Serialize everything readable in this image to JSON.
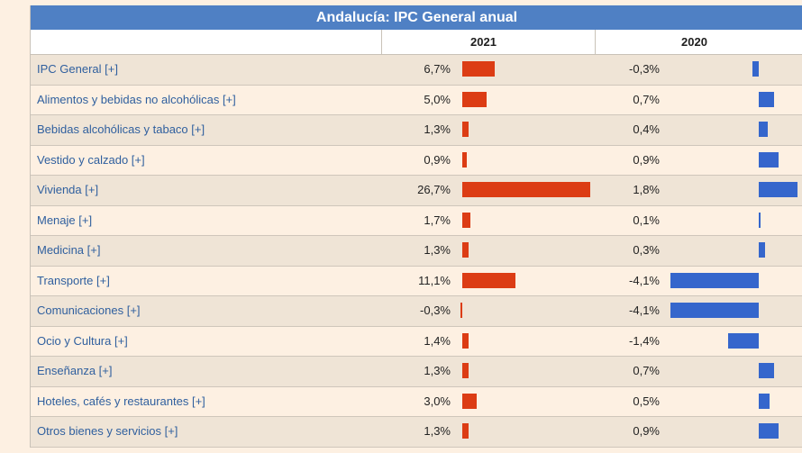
{
  "title": "Andalucía: IPC General anual",
  "columns": [
    "2021",
    "2020"
  ],
  "colors": {
    "bar_2021": "#dc3c14",
    "bar_2020": "#3566cc",
    "title_bg": "#4f80c4"
  },
  "rows": [
    {
      "label": "IPC General [+]",
      "v2021": "6,7%",
      "n2021": 6.7,
      "v2020": "-0,3%",
      "n2020": -0.3
    },
    {
      "label": "Alimentos y bebidas no alcohólicas [+]",
      "v2021": "5,0%",
      "n2021": 5.0,
      "v2020": "0,7%",
      "n2020": 0.7
    },
    {
      "label": "Bebidas alcohólicas y tabaco [+]",
      "v2021": "1,3%",
      "n2021": 1.3,
      "v2020": "0,4%",
      "n2020": 0.4
    },
    {
      "label": "Vestido y calzado [+]",
      "v2021": "0,9%",
      "n2021": 0.9,
      "v2020": "0,9%",
      "n2020": 0.9
    },
    {
      "label": "Vivienda [+]",
      "v2021": "26,7%",
      "n2021": 26.7,
      "v2020": "1,8%",
      "n2020": 1.8
    },
    {
      "label": "Menaje [+]",
      "v2021": "1,7%",
      "n2021": 1.7,
      "v2020": "0,1%",
      "n2020": 0.1
    },
    {
      "label": "Medicina [+]",
      "v2021": "1,3%",
      "n2021": 1.3,
      "v2020": "0,3%",
      "n2020": 0.3
    },
    {
      "label": "Transporte [+]",
      "v2021": "11,1%",
      "n2021": 11.1,
      "v2020": "-4,1%",
      "n2020": -4.1
    },
    {
      "label": "Comunicaciones [+]",
      "v2021": "-0,3%",
      "n2021": -0.3,
      "v2020": "-4,1%",
      "n2020": -4.1
    },
    {
      "label": "Ocio y Cultura [+]",
      "v2021": "1,4%",
      "n2021": 1.4,
      "v2020": "-1,4%",
      "n2020": -1.4
    },
    {
      "label": "Enseñanza [+]",
      "v2021": "1,3%",
      "n2021": 1.3,
      "v2020": "0,7%",
      "n2020": 0.7
    },
    {
      "label": "Hoteles, cafés y restaurantes [+]",
      "v2021": "3,0%",
      "n2021": 3.0,
      "v2020": "0,5%",
      "n2020": 0.5
    },
    {
      "label": "Otros bienes y servicios [+]",
      "v2021": "1,3%",
      "n2021": 1.3,
      "v2020": "0,9%",
      "n2020": 0.9
    }
  ]
}
